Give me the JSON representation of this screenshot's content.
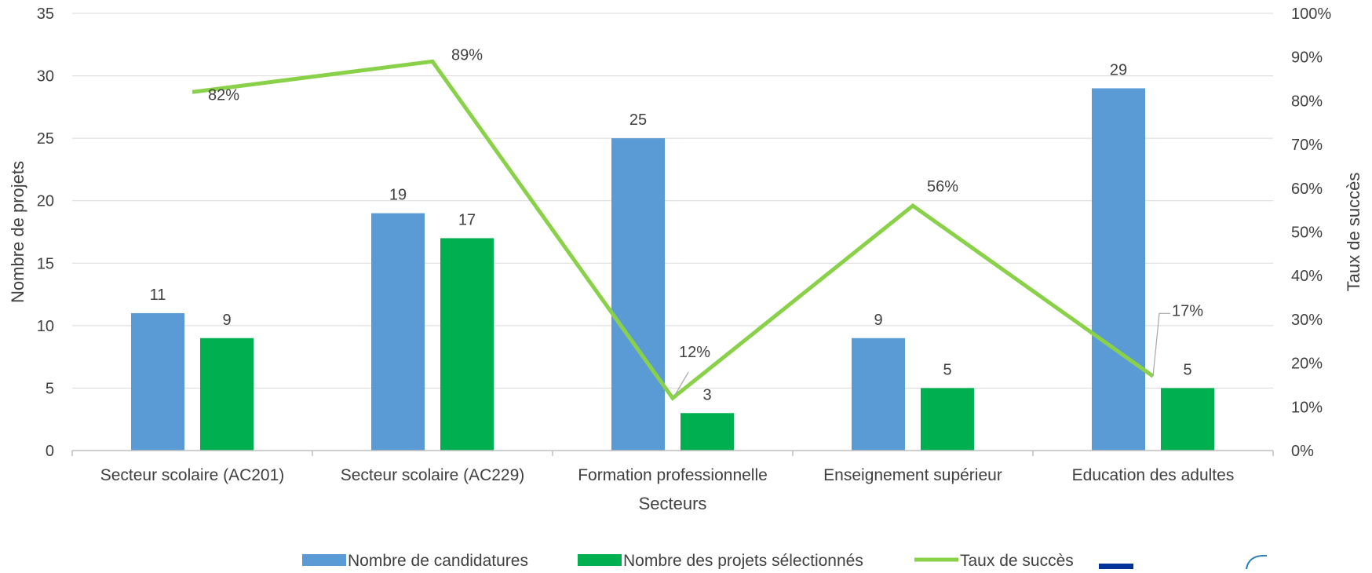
{
  "chart_data": {
    "type": "bar",
    "categories": [
      "Secteur scolaire (AC201)",
      "Secteur scolaire (AC229)",
      "Formation professionnelle",
      "Enseignement supérieur",
      "Education des adultes"
    ],
    "series": [
      {
        "name": "Nombre de candidatures",
        "type": "bar",
        "axis": "left",
        "color": "#5b9bd5",
        "values": [
          11,
          19,
          25,
          9,
          29
        ]
      },
      {
        "name": "Nombre des projets sélectionnés",
        "type": "bar",
        "axis": "left",
        "color": "#00b050",
        "values": [
          9,
          17,
          3,
          5,
          5
        ]
      },
      {
        "name": "Taux de succès",
        "type": "line",
        "axis": "right",
        "color": "#8ad14a",
        "values": [
          0.82,
          0.89,
          0.12,
          0.56,
          0.17
        ],
        "labels": [
          "82%",
          "89%",
          "12%",
          "56%",
          "17%"
        ]
      }
    ],
    "xlabel": "Secteurs",
    "ylabel": "Nombre de projets",
    "y2label": "Taux de succès",
    "ylim": [
      0,
      35
    ],
    "y_ticks": [
      "0",
      "5",
      "10",
      "15",
      "20",
      "25",
      "30",
      "35"
    ],
    "y2lim": [
      0,
      1
    ],
    "y2_ticks": [
      "0%",
      "10%",
      "20%",
      "30%",
      "40%",
      "50%",
      "60%",
      "70%",
      "80%",
      "90%",
      "100%"
    ],
    "grid": true,
    "legend": "bottom"
  }
}
